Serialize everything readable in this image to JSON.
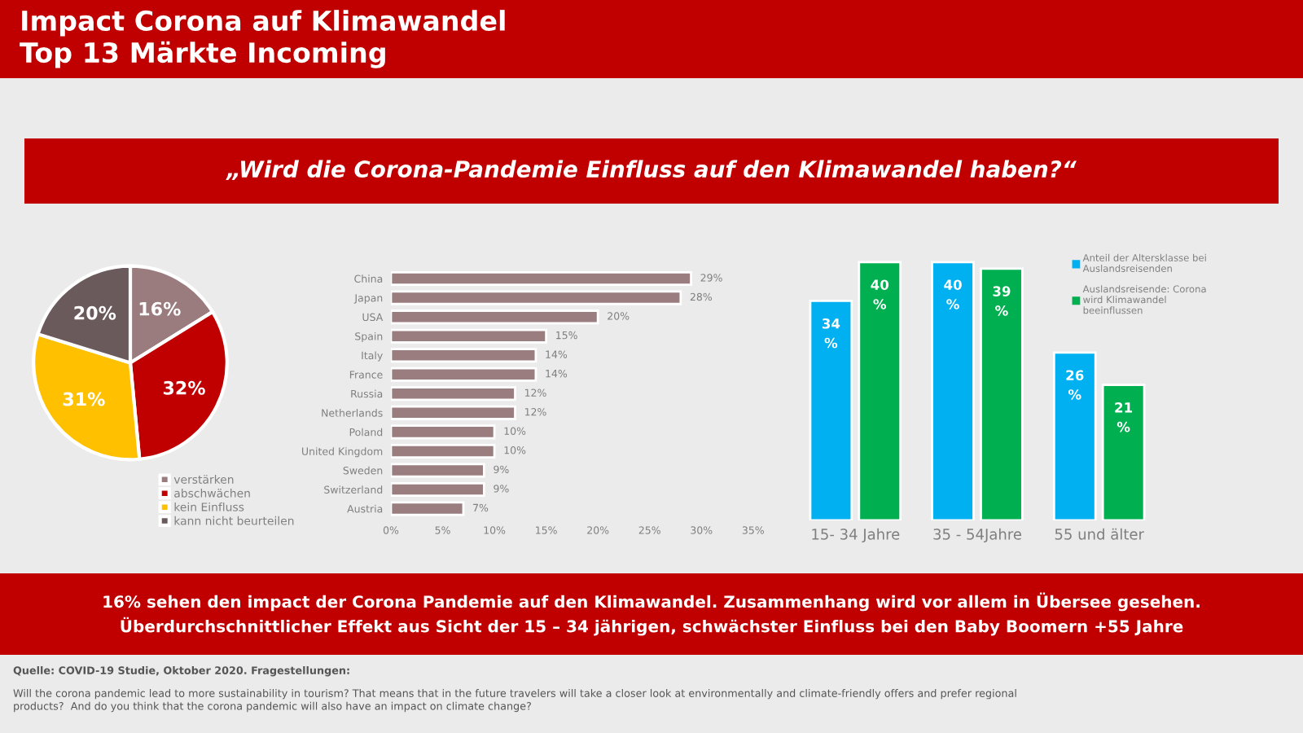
{
  "chart_data": [
    {
      "type": "pie",
      "title": "Impact Corona auf Klimawandel\nTop 13 Märkte Incoming",
      "categories": [
        "verstärken",
        "abschwächen",
        "kein Einfluss",
        "kann nicht beurteilen"
      ],
      "values": [
        16,
        32,
        31,
        20
      ],
      "colors": [
        "#9a7b7e",
        "#c00000",
        "#ffc000",
        "#6b5a5b"
      ],
      "value_labels": [
        "16%",
        "32%",
        "31%",
        "20%"
      ],
      "legend": "bottom right",
      "annotations": [
        "16% sehen den impact der Corona Pandemie auf den Klimawandel. Zusammenhang wird vor allem in Übersee gesehen.\nÜberdurchschnittlicher Effekt aus Sicht der 15 – 34 jährigen, schwächster Einfluss bei den Baby Boomern +55 Jahre",
        "Quelle: COVID-19 Studie, Oktober 2020. Fragestellungen:",
        "Will the corona pandemic lead to more sustainability in tourism? That means that in the future travelers will take a closer look at environmentally and climate-friendly offers and prefer regional\nproducts?  And do you think that the corona pandemic will also have an impact on climate change?"
      ]
    },
    {
      "type": "bar",
      "orientation": "horizontal",
      "subtitle": "„Wird die Corona-Pandemie Einfluss auf den Klimawandel haben?“",
      "categories": [
        "China",
        "Japan",
        "USA",
        "Spain",
        "Italy",
        "France",
        "Russia",
        "Netherlands",
        "Poland",
        "United Kingdom",
        "Sweden",
        "Switzerland",
        "Austria"
      ],
      "values": [
        29,
        28,
        20,
        15,
        14,
        14,
        12,
        12,
        10,
        10,
        9,
        9,
        7
      ],
      "color": "#9a7d7f",
      "value_labels": [
        "29%",
        "28%",
        "20%",
        "15%",
        "14%",
        "14%",
        "12%",
        "12%",
        "10%",
        "10%",
        "9%",
        "9%",
        "7%"
      ],
      "xlim": [
        0,
        35
      ],
      "xticks": [
        {
          "value": 0,
          "label": "0%"
        },
        {
          "value": 5,
          "label": "5%"
        },
        {
          "value": 10,
          "label": "10%"
        },
        {
          "value": 15,
          "label": "15%"
        },
        {
          "value": 20,
          "label": "20%"
        },
        {
          "value": 25,
          "label": "25%"
        },
        {
          "value": 30,
          "label": "30%"
        },
        {
          "value": 35,
          "label": "35%"
        }
      ],
      "grid": false
    },
    {
      "type": "bar",
      "categories": [
        "15- 34 Jahre",
        "35 - 54Jahre",
        "55 und älter"
      ],
      "tick_labels": "x",
      "legend": "top right",
      "series": [
        {
          "name": "Anteil der Altersklasse bei\nAuslandsreisenden",
          "color": "#00b0f0",
          "values": [
            34,
            40,
            26
          ],
          "value_labels": [
            "34\n%",
            "40\n%",
            "26\n%"
          ]
        },
        {
          "name": "Auslandsreisende: Corona\nwird Klimawandel\nbeeinflussen",
          "color": "#00b050",
          "values": [
            40,
            39,
            21
          ],
          "value_labels": [
            "40\n%",
            "39\n%",
            "21\n%"
          ]
        }
      ]
    }
  ]
}
